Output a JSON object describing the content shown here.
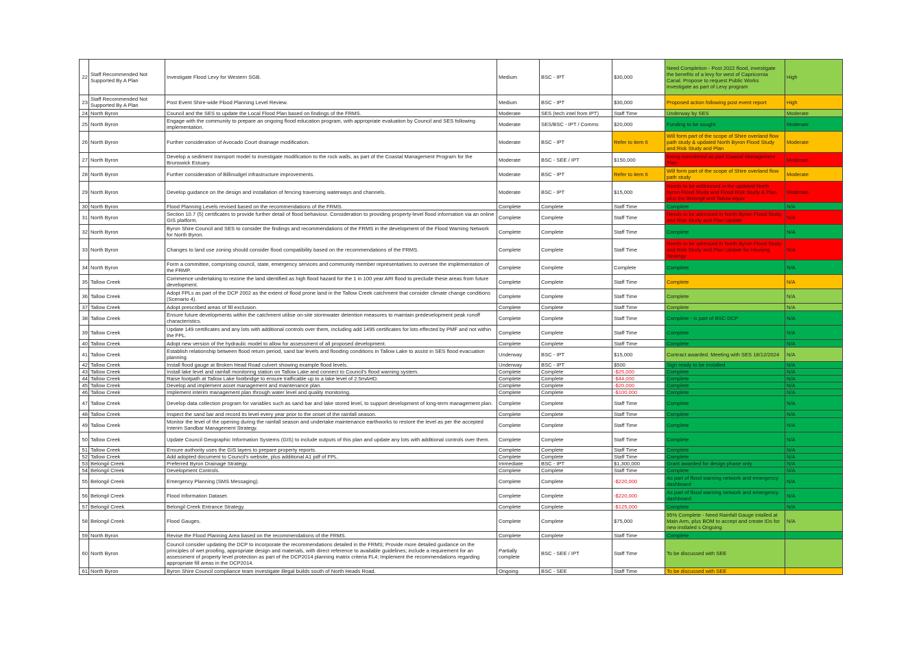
{
  "colors": {
    "light_green": "#92d050",
    "dark_green": "#00b050",
    "orange": "#ffc000",
    "red": "#ff0000",
    "negative_text": "#e3121b"
  },
  "rows": [
    {
      "num": "22",
      "area": "Staff Recommended Not Supported By A Plan",
      "action": "Investigate Flood Levy for Western SGB.",
      "priority": "Medium",
      "resp": "BSC - IPT",
      "cost": "$30,000",
      "status": "Need Completion - Post 2022 flood, investigate the benefits of a levy for west of Capricornia Canal. Propose to request Public Works investigate as part of Levy program",
      "rating": "High",
      "status_color": "lg",
      "rating_color": "lg",
      "cost_color": "",
      "neg": false,
      "h": 52
    },
    {
      "num": "23",
      "area": "Staff Recommended Not Supported By A Plan",
      "action": "Post Event Shire-wide Flood Planning Level Review.",
      "priority": "Medium",
      "resp": "BSC - IPT",
      "cost": "$30,000",
      "status": "Proposed action following post event report",
      "rating": "High",
      "status_color": "or",
      "rating_color": "or",
      "cost_color": "",
      "neg": false,
      "h": 21
    },
    {
      "num": "24",
      "area": "North Byron",
      "action": "Council and the SES to update the Local Flood Plan based on findings of the FRMS.",
      "priority": "Moderate",
      "resp": "SES (tech intel from IPT)",
      "cost": "Staff Time",
      "status": "Underway by SES",
      "rating": "Moderate",
      "status_color": "lg",
      "rating_color": "lg",
      "cost_color": "",
      "neg": false,
      "h": 11
    },
    {
      "num": "25",
      "area": "North Byron",
      "action": "Engage with the community to prepare an ongoing flood education program, with appropriate evaluation by Council and SES following implementation.",
      "priority": "Moderate",
      "resp": "SES/BSC - IPT / Comms",
      "cost": "$20,000",
      "status": "Funding to be sought",
      "rating": "Moderate",
      "status_color": "dg",
      "rating_color": "dg",
      "cost_color": "",
      "neg": false,
      "h": 21
    },
    {
      "num": "26",
      "area": "North Byron",
      "action": "Further consideration of Avocado Court drainage modification.",
      "priority": "Moderate",
      "resp": "BSC - IPT",
      "cost": "Refer to item 6",
      "status": "Will form part of the scope of Shire overland flow path study & updated North Byron Flood Study and Risk Study and Plan",
      "rating": "Moderate",
      "status_color": "or",
      "rating_color": "or",
      "cost_color": "or",
      "neg": false,
      "h": 31
    },
    {
      "num": "27",
      "area": "North Byron",
      "action": "Develop a sediment transport model to investigate modification to the rock walls, as part of the Coastal Management Program for the Brunswick Estuary.",
      "priority": "Moderate",
      "resp": "BSC - SEE / IPT",
      "cost": "$150,000",
      "status": "Being considered as part Coastal Management Plan",
      "rating": "Moderate",
      "status_color": "rd",
      "rating_color": "rd",
      "cost_color": "",
      "neg": false,
      "h": 21
    },
    {
      "num": "28",
      "area": "North Byron",
      "action": "Further consideration of Billinudgel infrastructure improvements.",
      "priority": "Moderate",
      "resp": "BSC - IPT",
      "cost": "Refer to item 6",
      "status": "Will form part of the scope of Shire overland flow path study",
      "rating": "Moderate",
      "status_color": "or",
      "rating_color": "or",
      "cost_color": "or",
      "neg": false,
      "h": 21
    },
    {
      "num": "29",
      "area": "North Byron",
      "action": "Develop guidance on the design and installation of fencing traversing waterways and channels.",
      "priority": "Moderate",
      "resp": "BSC - IPT",
      "cost": "$15,000",
      "status": "Needs to be addressed in the updated North byron Flood Study and Flood Risk Study & Plan plus the Belongil and Tallow equiv",
      "rating": "Moderate",
      "status_color": "rd",
      "rating_color": "rd",
      "cost_color": "",
      "neg": false,
      "h": 31
    },
    {
      "num": "30",
      "area": "North Byron",
      "action": "Flood Planning Levels revised based on the recommendations of the FRMS.",
      "priority": "Complete",
      "resp": "Complete",
      "cost": "Staff Time",
      "status": "Complete",
      "rating": "N/A",
      "status_color": "dg",
      "rating_color": "dg",
      "cost_color": "",
      "neg": false,
      "h": 11
    },
    {
      "num": "31",
      "area": "North Byron",
      "action": "Section 10.7 (5) certificates to provide further detail of flood behaviour. Consideration to providing property-level flood information via an online GIS platform.",
      "priority": "Complete",
      "resp": "Complete",
      "cost": "Staff Time",
      "status": "Needs to be adressed in North Byron Flood Study and Risk Study and Plan Update",
      "rating": "N/A",
      "status_color": "rd",
      "rating_color": "rd",
      "cost_color": "",
      "neg": false,
      "h": 21
    },
    {
      "num": "32",
      "area": "North Byron",
      "action": "Byron Shire Council and SES to consider the findings and recommendations of the FRMS in the development of the Flood Warning Network for North Byron.",
      "priority": "Complete",
      "resp": "Complete",
      "cost": "Staff Time",
      "status": "Complete",
      "rating": "N/A",
      "status_color": "dg",
      "rating_color": "dg",
      "cost_color": "",
      "neg": false,
      "h": 21
    },
    {
      "num": "33",
      "area": "North Byron",
      "action": "Changes to land use zoning should consider flood compatibility based on the recommendations of the FRMS.",
      "priority": "Complete",
      "resp": "Complete",
      "cost": "Staff Time",
      "status": "Needs to be adressed in North Byron Flood Study and Risk Study and Plan Update for Housing Strategy",
      "rating": "N/A",
      "status_color": "rd",
      "rating_color": "rd",
      "cost_color": "",
      "neg": false,
      "h": 31
    },
    {
      "num": "34",
      "area": "North Byron",
      "action": "Form a committee, comprising council, state, emergency services and community member representatives to oversee the implementation of the FRMP.",
      "priority": "Complete",
      "resp": "Complete",
      "cost": "Complete",
      "status": "Complete",
      "rating": "N/A",
      "status_color": "dg",
      "rating_color": "dg",
      "cost_color": "",
      "neg": false,
      "h": 21
    },
    {
      "num": "35",
      "area": "Tallow Creek",
      "action": "Commence undertaking to rezone the land identified as high flood hazard for the 1 in 100 year ARI flood to preclude these areas from future development.",
      "priority": "Complete",
      "resp": "Complete",
      "cost": "Staff Time",
      "status": "Complete",
      "rating": "N/A",
      "status_color": "or",
      "rating_color": "or",
      "cost_color": "",
      "neg": false,
      "h": 21
    },
    {
      "num": "36",
      "area": "Tallow Creek",
      "action": "Adopt FPLs as part of the DCP 2002 as the extent of flood prone land in the Tallow Creek catchment that consider climate change conditions (Scenario 4).",
      "priority": "Complete",
      "resp": "Complete",
      "cost": "Staff Time",
      "status": "Complete",
      "rating": "N/A",
      "status_color": "lg",
      "rating_color": "lg",
      "cost_color": "",
      "neg": false,
      "h": 21
    },
    {
      "num": "37",
      "area": "Tallow Creek",
      "action": "Adopt prescribed areas of fill exclusion.",
      "priority": "Complete",
      "resp": "Complete",
      "cost": "Staff Time",
      "status": "Complete",
      "rating": "N/A",
      "status_color": "lg",
      "rating_color": "lg",
      "cost_color": "",
      "neg": false,
      "h": 11
    },
    {
      "num": "38",
      "area": "Tallow Creek",
      "action": "Ensure future developments within the catchment utilise on-site stormwater detention measures to maintain predevelopment peak runoff characteristics.",
      "priority": "Complete",
      "resp": "Complete",
      "cost": "Staff Time",
      "status": "Complete - is part of BSC DCP",
      "rating": "N/A",
      "status_color": "dg",
      "rating_color": "dg",
      "cost_color": "",
      "neg": false,
      "h": 21
    },
    {
      "num": "39",
      "area": "Tallow Creek",
      "action": "Update 149 certificates and any lots with additional controls over them, including add 1495 certificates for lots effected by PMF and not within the FPL.",
      "priority": "Complete",
      "resp": "Complete",
      "cost": "Staff Time",
      "status": "Complete",
      "rating": "N/A",
      "status_color": "dg",
      "rating_color": "dg",
      "cost_color": "",
      "neg": false,
      "h": 21
    },
    {
      "num": "40",
      "area": "Tallow Creek",
      "action": "Adopt new version of the hydraulic model to allow for assessment of all proposed development.",
      "priority": "Complete",
      "resp": "Complete",
      "cost": "Staff Time",
      "status": "Complete",
      "rating": "N/A",
      "status_color": "dg",
      "rating_color": "dg",
      "cost_color": "",
      "neg": false,
      "h": 11
    },
    {
      "num": "41",
      "area": "Tallow Creek",
      "action": "Establish relationship between flood return period, sand bar levels and flooding conditions in Tallow Lake to assist in SES flood evacuation planning.",
      "priority": "Underway",
      "resp": "BSC - IPT",
      "cost": "$15,000",
      "status": "Contract awarded. Meeting with SES 18/12/2024",
      "rating": "N/A",
      "status_color": "lg",
      "rating_color": "lg",
      "cost_color": "",
      "neg": false,
      "h": 21
    },
    {
      "num": "42",
      "area": "Tallow Creek",
      "action": "Install flood gauge at Broken Head Road culvert showing example flood levels.",
      "priority": "Underway",
      "resp": "BSC - IPT",
      "cost": "$500",
      "status": "Sign ready to be installed",
      "rating": "N/A",
      "status_color": "dg",
      "rating_color": "dg",
      "cost_color": "",
      "neg": false,
      "h": 10
    },
    {
      "num": "43",
      "area": "Tallow Creek",
      "action": "Install lake level and rainfall monitoring station on Tallow Lake and connect to Council's flood warning system.",
      "priority": "Complete",
      "resp": "Complete",
      "cost": "-$25,000",
      "status": "Complete",
      "rating": "N/A",
      "status_color": "dg",
      "rating_color": "dg",
      "cost_color": "",
      "neg": true,
      "h": 10
    },
    {
      "num": "44",
      "area": "Tallow Creek",
      "action": "Raise footpath at Tallow Lake footbridge to ensure trafficable up to a lake level of 2.5mAHD.",
      "priority": "Complete",
      "resp": "Complete",
      "cost": "-$44,000",
      "status": "Complete",
      "rating": "N/A",
      "status_color": "dg",
      "rating_color": "dg",
      "cost_color": "",
      "neg": true,
      "h": 10
    },
    {
      "num": "45",
      "area": "Tallow Creek",
      "action": "Develop and implement asset management and maintenance plan.",
      "priority": "Complete",
      "resp": "Complete",
      "cost": "-$20,000",
      "status": "Complete",
      "rating": "N/A",
      "status_color": "dg",
      "rating_color": "dg",
      "cost_color": "",
      "neg": true,
      "h": 10
    },
    {
      "num": "46",
      "area": "Tallow Creek",
      "action": "Implement interim management plan through water level and quality monitoring.",
      "priority": "Complete",
      "resp": "Complete",
      "cost": "-$100,000",
      "status": "Complete",
      "rating": "N/A",
      "status_color": "dg",
      "rating_color": "dg",
      "cost_color": "",
      "neg": true,
      "h": 10
    },
    {
      "num": "47",
      "area": "Tallow Creek",
      "action": "Develop data collection program for variables such as sand bar and lake stored level, to support development of long-term management plan.",
      "priority": "Complete",
      "resp": "Complete",
      "cost": "Staff Time",
      "status": "Complete",
      "rating": "N/A",
      "status_color": "dg",
      "rating_color": "dg",
      "cost_color": "",
      "neg": false,
      "h": 21
    },
    {
      "num": "48",
      "area": "Tallow Creek",
      "action": "Inspect the sand bar and record its level every year prior to the onset of the rainfall season.",
      "priority": "Complete",
      "resp": "Complete",
      "cost": "Staff Time",
      "status": "Complete",
      "rating": "N/A",
      "status_color": "dg",
      "rating_color": "dg",
      "cost_color": "",
      "neg": false,
      "h": 11
    },
    {
      "num": "49",
      "area": "Tallow Creek",
      "action": "Monitor the level of the opening during the rainfall season and undertake maintenance earthworks to restore the level as per the accepted Interim Sandbar Management Strategy.",
      "priority": "Complete",
      "resp": "Complete",
      "cost": "Staff Time",
      "status": "Complete",
      "rating": "N/A",
      "status_color": "dg",
      "rating_color": "dg",
      "cost_color": "",
      "neg": false,
      "h": 21
    },
    {
      "num": "50",
      "area": "Tallow Creek",
      "action": "Update Council Geographic Information Systems (GIS) to include outputs of this plan and update any lots with additional controls over them.",
      "priority": "Complete",
      "resp": "Complete",
      "cost": "Staff Time",
      "status": "Complete",
      "rating": "N/A",
      "status_color": "dg",
      "rating_color": "dg",
      "cost_color": "",
      "neg": false,
      "h": 21
    },
    {
      "num": "51",
      "area": "Tallow Creek",
      "action": "Ensure authority uses the GIS layers to prepare property reports.",
      "priority": "Complete",
      "resp": "Complete",
      "cost": "Staff Time",
      "status": "Complete",
      "rating": "N/A",
      "status_color": "dg",
      "rating_color": "dg",
      "cost_color": "",
      "neg": false,
      "h": 10
    },
    {
      "num": "52",
      "area": "Tallow Creek",
      "action": "Add adopted document to Council's website, plus additional A1 pdf of FPL.",
      "priority": "Complete",
      "resp": "Complete",
      "cost": "Staff Time",
      "status": "Complete",
      "rating": "N/A",
      "status_color": "dg",
      "rating_color": "dg",
      "cost_color": "",
      "neg": false,
      "h": 10
    },
    {
      "num": "53",
      "area": "Belongil Creek",
      "action": "Preferred Byron Drainage Strategy.",
      "priority": "Immediate",
      "resp": "BSC - IPT",
      "cost": "$1,300,000",
      "status": "Grant awarded for design phase only",
      "rating": "N/A",
      "status_color": "dg",
      "rating_color": "dg",
      "cost_color": "",
      "neg": false,
      "h": 10
    },
    {
      "num": "54",
      "area": "Belongil Creek",
      "action": "Development Controls.",
      "priority": "Complete",
      "resp": "Complete",
      "cost": "Staff Time",
      "status": "Complete",
      "rating": "N/A",
      "status_color": "dg",
      "rating_color": "dg",
      "cost_color": "",
      "neg": false,
      "h": 10
    },
    {
      "num": "55",
      "area": "Belongil Creek",
      "action": "Emergency Planning (SMS Messaging).",
      "priority": "Complete",
      "resp": "Complete",
      "cost": "-$220,000",
      "status": "As part of flood warning network and emergency dashboard",
      "rating": "N/A",
      "status_color": "dg",
      "rating_color": "dg",
      "cost_color": "",
      "neg": true,
      "h": 21
    },
    {
      "num": "56",
      "area": "Belongil Creek",
      "action": "Flood Information Dataset.",
      "priority": "Complete",
      "resp": "Complete",
      "cost": "-$220,000",
      "status": "As part of flood warning network and emergency dashboard",
      "rating": "N/A",
      "status_color": "dg",
      "rating_color": "dg",
      "cost_color": "",
      "neg": true,
      "h": 21
    },
    {
      "num": "57",
      "area": "Belongil Creek",
      "action": "Belongil Creek Entrance Strategy.",
      "priority": "Complete",
      "resp": "Complete",
      "cost": "-$125,000",
      "status": "Complete",
      "rating": "N/A",
      "status_color": "dg",
      "rating_color": "dg",
      "cost_color": "",
      "neg": true,
      "h": 11
    },
    {
      "num": "58",
      "area": "Belongil Creek",
      "action": "Flood Gauges.",
      "priority": "Complete",
      "resp": "Complete",
      "cost": "$75,000",
      "status": "95% Complete - Need Rainfall Gauge intalled at Main Arm, plus BOM to accept and create IDs for new instlaled s Ongoing",
      "rating": "N/A",
      "status_color": "lg",
      "rating_color": "lg",
      "cost_color": "",
      "neg": false,
      "h": 31
    },
    {
      "num": "59",
      "area": "North Byron",
      "action": "Revise the Flood Planning Area based on the recommendations of the FRMS.",
      "priority": "Complete",
      "resp": "Complete",
      "cost": "Staff Time",
      "status": "Complete",
      "rating": "",
      "status_color": "dg",
      "rating_color": "dg",
      "cost_color": "",
      "neg": false,
      "h": 11
    },
    {
      "num": "60",
      "area": "North Byron",
      "action": "Council consider updating the DCP to incorporate the recommendations detailed in the FRMS; Provide more detailed guidance on the principles of wet proofing, appropriate design and materials, with direct reference to available guidelines; include a requirement for an assessment of property level protection as part of the DCP2014 planning matrix criteria FL4; Implement the recommendations regarding appropriate fill areas in the DCP2014.",
      "priority": "Partially complete",
      "resp": "BSC - SEE / IPT",
      "cost": "Staff Time",
      "status": "To be discussed with SEE",
      "rating": "",
      "status_color": "lg",
      "rating_color": "lg",
      "cost_color": "",
      "neg": false,
      "h": 42
    },
    {
      "num": "61",
      "area": "North Byron",
      "action": "Byron Shire Council compliance team investigate illegal builds south of North Heads Road.",
      "priority": "Ongoing",
      "resp": "BSC - SEE",
      "cost": "Staff Time",
      "status": "To be discussed with SEE",
      "rating": "",
      "status_color": "or",
      "rating_color": "or",
      "cost_color": "",
      "neg": false,
      "h": 10
    }
  ]
}
